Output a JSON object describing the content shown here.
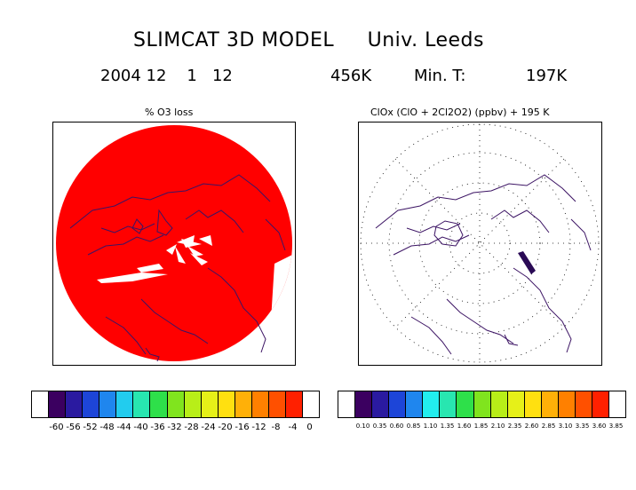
{
  "header": {
    "title": "SLIMCAT 3D MODEL     Univ. Leeds",
    "date": "2004 12    1   12",
    "level": "456K",
    "min_label": "Min. T:",
    "min_value": "197K"
  },
  "panels": {
    "left": {
      "title": "% O3 loss",
      "fill_color": "#ff0000",
      "colorbar": {
        "colors": [
          "#ffffff",
          "#3b0060",
          "#2a1aa0",
          "#1d45d8",
          "#1f86ee",
          "#22ccee",
          "#28e6b0",
          "#2ee04a",
          "#80e41e",
          "#b8ee18",
          "#e6f018",
          "#ffe010",
          "#ffb008",
          "#ff8000",
          "#ff5000",
          "#ff2000",
          "#ffffff"
        ],
        "tick_labels": [
          "-60",
          "-56",
          "-52",
          "-48",
          "-44",
          "-40",
          "-36",
          "-32",
          "-28",
          "-24",
          "-20",
          "-16",
          "-12",
          "-8",
          "-4",
          "0"
        ]
      }
    },
    "right": {
      "title": "ClOx (ClO + 2Cl2O2) (ppbv)  + 195 K",
      "colorbar": {
        "colors": [
          "#ffffff",
          "#3b0060",
          "#2a1aa0",
          "#1d45d8",
          "#1f86ee",
          "#22eeee",
          "#28e6b0",
          "#2ee04a",
          "#80e41e",
          "#b8ee18",
          "#e6f018",
          "#ffe010",
          "#ffb008",
          "#ff8000",
          "#ff5000",
          "#ff2000",
          "#ffffff"
        ],
        "tick_labels": [
          "0.10",
          "0.35",
          "0.60",
          "0.85",
          "1.10",
          "1.35",
          "1.60",
          "1.85",
          "2.10",
          "2.35",
          "2.60",
          "2.85",
          "3.10",
          "3.35",
          "3.60",
          "3.85"
        ]
      }
    }
  },
  "colors": {
    "coastline": "#3c1464",
    "frame": "#000000"
  }
}
